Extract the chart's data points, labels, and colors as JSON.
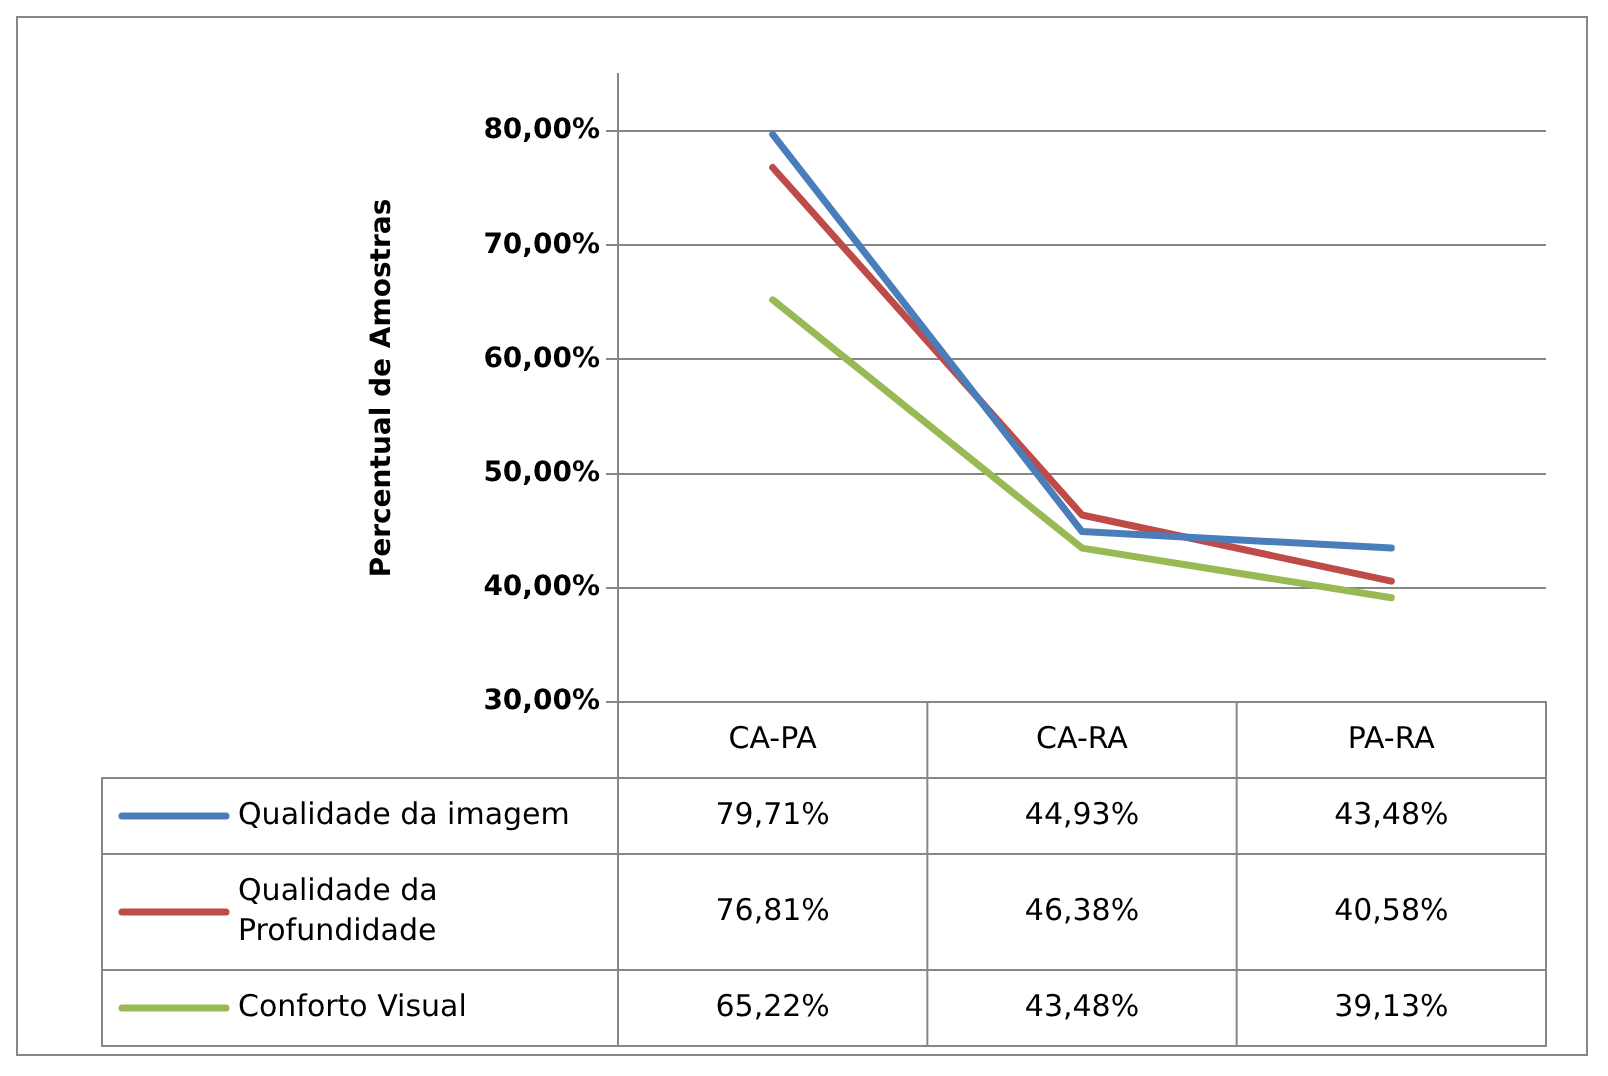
{
  "chart_data": {
    "type": "line",
    "ylabel": "Percentual de Amostras",
    "categories": [
      "CA-PA",
      "CA-RA",
      "PA-RA"
    ],
    "series": [
      {
        "name": "Qualidade da imagem",
        "color": "#4a7ebb",
        "values": [
          79.71,
          44.93,
          43.48
        ],
        "value_labels": [
          "79,71%",
          "44,93%",
          "43,48%"
        ]
      },
      {
        "name": "Qualidade da Profundidade",
        "color": "#be4b48",
        "values": [
          76.81,
          46.38,
          40.58
        ],
        "value_labels": [
          "76,81%",
          "46,38%",
          "40,58%"
        ]
      },
      {
        "name": "Conforto Visual",
        "color": "#98b954",
        "values": [
          65.22,
          43.48,
          39.13
        ],
        "value_labels": [
          "65,22%",
          "43,48%",
          "39,13%"
        ]
      }
    ],
    "ylim": [
      30,
      85
    ],
    "yticks": [
      {
        "value": 30,
        "label": "30,00%"
      },
      {
        "value": 40,
        "label": "40,00%"
      },
      {
        "value": 50,
        "label": "50,00%"
      },
      {
        "value": 60,
        "label": "60,00%"
      },
      {
        "value": 70,
        "label": "70,00%"
      },
      {
        "value": 80,
        "label": "80,00%"
      }
    ],
    "grid": "y",
    "legend": "bottom",
    "marker": "none",
    "line_style": "solid"
  }
}
